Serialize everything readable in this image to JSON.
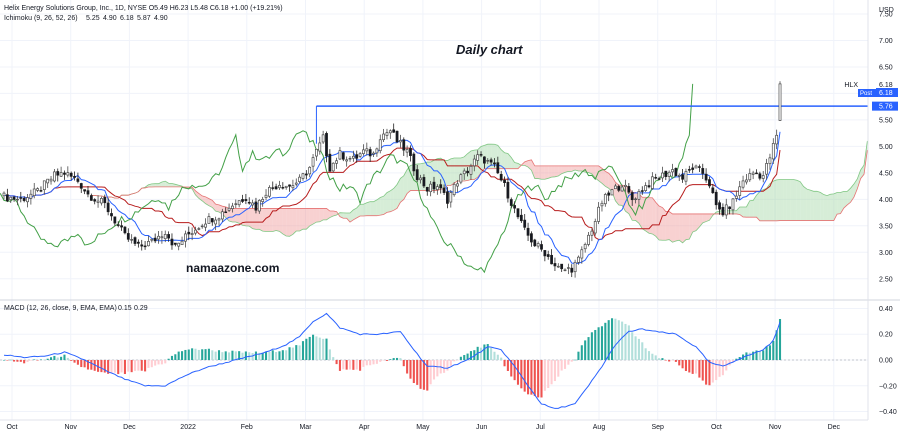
{
  "header": {
    "symbol_line": "Helix Energy Solutions Group, Inc., 1D, NYSE O5.49 H6.23 L5.48 C6.18 +1.00 (+19.21%)",
    "ichimoku_name": "Ichimoku (9, 26, 52, 26)",
    "ichimoku_values": [
      "5.25",
      "4.90",
      "6.18",
      "5.87",
      "4.90"
    ],
    "macd_name": "MACD (12, 26, close, 9, EMA, EMA)",
    "macd_values": [
      "0.15",
      "0.29"
    ],
    "currency": "USD"
  },
  "annotations": {
    "title": "Daily chart",
    "watermark": "namaazone.com"
  },
  "price_tags": {
    "symbol": "HLX",
    "last": "6.18",
    "post_label": "Post",
    "post": "6.18",
    "level": "5.76"
  },
  "colors": {
    "up": "#26a69a",
    "down": "#ef5350",
    "tenkan": "#2962ff",
    "kijun": "#b71c1c",
    "chikou": "#43a047",
    "cloud_bull": "#a5d6a7",
    "cloud_bear": "#ef9a9a",
    "level": "#2962ff",
    "macd": "#2962ff"
  },
  "chart_data": [
    {
      "type": "candlestick",
      "ylim": [
        2.25,
        7.5
      ],
      "y_ticks": [
        "2.50",
        "3.00",
        "3.50",
        "4.00",
        "4.50",
        "5.00",
        "5.50",
        "6.00",
        "6.50",
        "7.00",
        "7.50"
      ],
      "x_ticks": [
        "Oct",
        "Nov",
        "Dec",
        "2022",
        "Feb",
        "Mar",
        "Apr",
        "May",
        "Jun",
        "Jul",
        "Aug",
        "Sep",
        "Oct",
        "Nov",
        "Dec"
      ],
      "horizontal_line": 5.76,
      "anchors": [
        [
          0,
          4.05
        ],
        [
          5,
          4.0
        ],
        [
          10,
          4.15
        ],
        [
          15,
          4.45
        ],
        [
          18,
          4.5
        ],
        [
          22,
          4.35
        ],
        [
          25,
          4.1
        ],
        [
          30,
          3.9
        ],
        [
          33,
          3.6
        ],
        [
          36,
          3.3
        ],
        [
          40,
          3.1
        ],
        [
          44,
          3.2
        ],
        [
          48,
          3.4
        ],
        [
          51,
          3.1
        ],
        [
          55,
          3.35
        ],
        [
          60,
          3.6
        ],
        [
          64,
          3.7
        ],
        [
          68,
          3.9
        ],
        [
          72,
          4.05
        ],
        [
          75,
          3.85
        ],
        [
          78,
          4.15
        ],
        [
          82,
          4.3
        ],
        [
          85,
          4.25
        ],
        [
          88,
          4.35
        ],
        [
          91,
          4.6
        ],
        [
          93,
          4.9
        ],
        [
          95,
          5.15
        ],
        [
          97,
          4.6
        ],
        [
          100,
          4.85
        ],
        [
          104,
          4.75
        ],
        [
          107,
          4.9
        ],
        [
          110,
          4.85
        ],
        [
          112,
          5.2
        ],
        [
          115,
          5.3
        ],
        [
          117,
          5.1
        ],
        [
          120,
          4.9
        ],
        [
          123,
          4.45
        ],
        [
          126,
          4.2
        ],
        [
          129,
          4.25
        ],
        [
          132,
          4.0
        ],
        [
          135,
          4.35
        ],
        [
          138,
          4.55
        ],
        [
          141,
          4.8
        ],
        [
          143,
          4.75
        ],
        [
          146,
          4.6
        ],
        [
          149,
          4.25
        ],
        [
          152,
          3.8
        ],
        [
          155,
          3.4
        ],
        [
          158,
          3.15
        ],
        [
          161,
          3.0
        ],
        [
          164,
          2.75
        ],
        [
          166,
          2.65
        ],
        [
          169,
          2.7
        ],
        [
          171,
          2.85
        ],
        [
          174,
          3.3
        ],
        [
          176,
          3.6
        ],
        [
          178,
          3.95
        ],
        [
          181,
          4.15
        ],
        [
          184,
          4.3
        ],
        [
          187,
          4.0
        ],
        [
          190,
          4.2
        ],
        [
          193,
          4.35
        ],
        [
          196,
          4.45
        ],
        [
          199,
          4.55
        ],
        [
          202,
          4.4
        ],
        [
          205,
          4.6
        ],
        [
          208,
          4.5
        ],
        [
          210,
          4.3
        ],
        [
          212,
          3.85
        ],
        [
          214,
          3.75
        ],
        [
          217,
          3.95
        ],
        [
          220,
          4.35
        ],
        [
          223,
          4.5
        ],
        [
          226,
          4.45
        ],
        [
          228,
          4.8
        ],
        [
          230,
          5.2
        ],
        [
          231,
          6.18
        ]
      ],
      "projection_anchors": [
        [
          232,
          4.1
        ],
        [
          240,
          4.15
        ],
        [
          248,
          4.3
        ],
        [
          252,
          4.6
        ],
        [
          255,
          5.0
        ]
      ],
      "total_bars": 256
    },
    {
      "type": "macd",
      "ylim": [
        -0.45,
        0.45
      ],
      "y_ticks": [
        "0.40",
        "0.20",
        "0.00",
        "−0.20",
        "−0.40"
      ],
      "anchors": [
        [
          0,
          0.04
        ],
        [
          6,
          0.02
        ],
        [
          12,
          0.03
        ],
        [
          18,
          0.06
        ],
        [
          24,
          0.0
        ],
        [
          30,
          -0.08
        ],
        [
          36,
          -0.15
        ],
        [
          42,
          -0.2
        ],
        [
          48,
          -0.2
        ],
        [
          54,
          -0.12
        ],
        [
          60,
          -0.06
        ],
        [
          66,
          -0.02
        ],
        [
          72,
          0.02
        ],
        [
          78,
          0.06
        ],
        [
          84,
          0.12
        ],
        [
          88,
          0.18
        ],
        [
          92,
          0.3
        ],
        [
          96,
          0.36
        ],
        [
          100,
          0.25
        ],
        [
          106,
          0.2
        ],
        [
          112,
          0.2
        ],
        [
          118,
          0.22
        ],
        [
          122,
          0.08
        ],
        [
          126,
          -0.05
        ],
        [
          132,
          -0.06
        ],
        [
          138,
          0.0
        ],
        [
          144,
          0.1
        ],
        [
          148,
          0.08
        ],
        [
          152,
          -0.05
        ],
        [
          156,
          -0.2
        ],
        [
          160,
          -0.34
        ],
        [
          164,
          -0.38
        ],
        [
          170,
          -0.34
        ],
        [
          174,
          -0.2
        ],
        [
          178,
          -0.05
        ],
        [
          182,
          0.12
        ],
        [
          186,
          0.22
        ],
        [
          190,
          0.24
        ],
        [
          194,
          0.22
        ],
        [
          200,
          0.2
        ],
        [
          206,
          0.1
        ],
        [
          210,
          -0.02
        ],
        [
          214,
          -0.05
        ],
        [
          218,
          0.0
        ],
        [
          222,
          0.04
        ],
        [
          226,
          0.08
        ],
        [
          229,
          0.15
        ],
        [
          231,
          0.29
        ]
      ]
    }
  ]
}
